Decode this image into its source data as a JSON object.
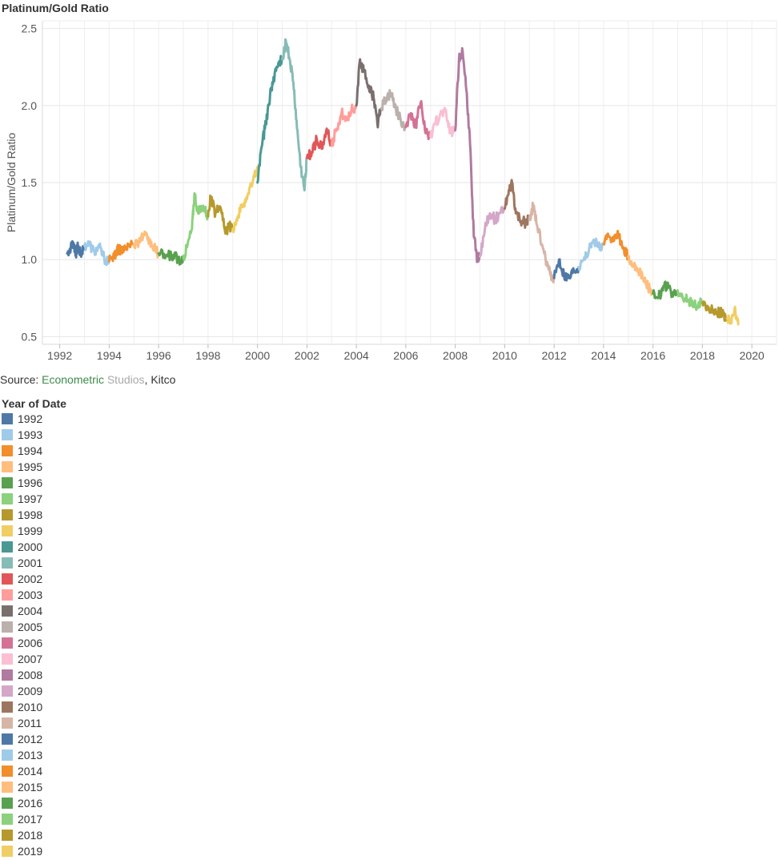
{
  "title": "Platinum/Gold Ratio",
  "source": {
    "prefix": "Source: ",
    "part1": "Econometric",
    "part2": " Studios",
    "part3": ", Kitco"
  },
  "legend": {
    "title": "Year of Date"
  },
  "colors": {
    "1992": "#4e79a7",
    "1993": "#a0cbe8",
    "1994": "#f28e2b",
    "1995": "#ffbe7d",
    "1996": "#59a14f",
    "1997": "#8cd17d",
    "1998": "#b6992d",
    "1999": "#f1ce63",
    "2000": "#499894",
    "2001": "#86bcb6",
    "2002": "#e15759",
    "2003": "#ff9d9a",
    "2004": "#79706e",
    "2005": "#bab0ac",
    "2006": "#d37295",
    "2007": "#fabfd2",
    "2008": "#b07aa1",
    "2009": "#d4a6c8",
    "2010": "#9d7660",
    "2011": "#d7b5a6",
    "2012": "#4e79a7",
    "2013": "#a0cbe8",
    "2014": "#f28e2b",
    "2015": "#ffbe7d",
    "2016": "#59a14f",
    "2017": "#8cd17d",
    "2018": "#b6992d",
    "2019": "#f1ce63"
  },
  "chart_data": {
    "type": "line",
    "ylabel": "Platinum/Gold Ratio",
    "xlabel": "",
    "xlim": [
      1991.3,
      2021.0
    ],
    "ylim": [
      0.45,
      2.55
    ],
    "xticks": [
      "1992",
      "1994",
      "1996",
      "1998",
      "2000",
      "2002",
      "2004",
      "2006",
      "2008",
      "2010",
      "2012",
      "2014",
      "2016",
      "2018",
      "2020"
    ],
    "yticks": [
      "0.5",
      "1.0",
      "1.5",
      "2.0",
      "2.5"
    ],
    "grid": true,
    "legend": "below chart, left",
    "series": [
      {
        "name": "1992",
        "x": [
          1992.3,
          1992.45,
          1992.55,
          1992.65,
          1992.75,
          1992.85,
          1992.99
        ],
        "y": [
          1.04,
          1.08,
          1.11,
          1.04,
          1.09,
          1.03,
          1.09
        ]
      },
      {
        "name": "1993",
        "x": [
          1993.0,
          1993.2,
          1993.4,
          1993.6,
          1993.8,
          1993.99
        ],
        "y": [
          1.09,
          1.1,
          1.05,
          1.08,
          1.01,
          0.98
        ]
      },
      {
        "name": "1994",
        "x": [
          1994.0,
          1994.2,
          1994.4,
          1994.6,
          1994.8,
          1994.99
        ],
        "y": [
          0.99,
          1.03,
          1.07,
          1.06,
          1.09,
          1.1
        ]
      },
      {
        "name": "1995",
        "x": [
          1995.0,
          1995.2,
          1995.4,
          1995.55,
          1995.75,
          1995.99
        ],
        "y": [
          1.1,
          1.12,
          1.16,
          1.13,
          1.09,
          1.04
        ]
      },
      {
        "name": "1996",
        "x": [
          1996.0,
          1996.3,
          1996.6,
          1996.8,
          1996.99
        ],
        "y": [
          1.04,
          1.02,
          1.03,
          1.0,
          1.01
        ]
      },
      {
        "name": "1997",
        "x": [
          1997.0,
          1997.15,
          1997.35,
          1997.45,
          1997.6,
          1997.8,
          1997.99
        ],
        "y": [
          1.01,
          1.08,
          1.2,
          1.43,
          1.3,
          1.35,
          1.28
        ]
      },
      {
        "name": "1998",
        "x": [
          1998.0,
          1998.1,
          1998.3,
          1998.5,
          1998.7,
          1998.85,
          1998.99
        ],
        "y": [
          1.28,
          1.4,
          1.3,
          1.34,
          1.17,
          1.22,
          1.2
        ]
      },
      {
        "name": "1999",
        "x": [
          1999.0,
          1999.2,
          1999.4,
          1999.6,
          1999.8,
          1999.99
        ],
        "y": [
          1.2,
          1.28,
          1.35,
          1.42,
          1.5,
          1.6
        ]
      },
      {
        "name": "2000",
        "x": [
          2000.0,
          2000.15,
          2000.3,
          2000.45,
          2000.6,
          2000.8,
          2000.99
        ],
        "y": [
          1.5,
          1.72,
          1.85,
          2.0,
          2.15,
          2.25,
          2.3
        ]
      },
      {
        "name": "2001",
        "x": [
          2001.0,
          2001.15,
          2001.3,
          2001.45,
          2001.6,
          2001.75,
          2001.9,
          2001.99
        ],
        "y": [
          2.3,
          2.42,
          2.3,
          2.15,
          1.85,
          1.6,
          1.45,
          1.66
        ]
      },
      {
        "name": "2002",
        "x": [
          2002.0,
          2002.2,
          2002.4,
          2002.6,
          2002.8,
          2002.99
        ],
        "y": [
          1.66,
          1.7,
          1.78,
          1.72,
          1.85,
          1.74
        ]
      },
      {
        "name": "2003",
        "x": [
          2003.0,
          2003.2,
          2003.4,
          2003.6,
          2003.8,
          2003.99
        ],
        "y": [
          1.74,
          1.85,
          1.95,
          1.92,
          1.97,
          2.0
        ]
      },
      {
        "name": "2004",
        "x": [
          2004.0,
          2004.15,
          2004.3,
          2004.5,
          2004.7,
          2004.85,
          2004.99
        ],
        "y": [
          2.0,
          2.3,
          2.22,
          2.13,
          2.05,
          1.88,
          1.98
        ]
      },
      {
        "name": "2005",
        "x": [
          2005.0,
          2005.2,
          2005.4,
          2005.6,
          2005.8,
          2005.99
        ],
        "y": [
          1.98,
          2.05,
          2.08,
          1.98,
          1.9,
          1.86
        ]
      },
      {
        "name": "2006",
        "x": [
          2006.0,
          2006.2,
          2006.4,
          2006.6,
          2006.8,
          2006.99
        ],
        "y": [
          1.86,
          1.95,
          1.87,
          2.02,
          1.82,
          1.8
        ]
      },
      {
        "name": "2007",
        "x": [
          2007.0,
          2007.2,
          2007.4,
          2007.6,
          2007.8,
          2007.99
        ],
        "y": [
          1.8,
          1.88,
          1.95,
          1.96,
          1.83,
          1.84
        ]
      },
      {
        "name": "2008",
        "x": [
          2008.0,
          2008.15,
          2008.3,
          2008.45,
          2008.6,
          2008.75,
          2008.9,
          2008.99
        ],
        "y": [
          1.84,
          2.3,
          2.35,
          2.1,
          1.75,
          1.15,
          1.0,
          1.02
        ]
      },
      {
        "name": "2009",
        "x": [
          2009.0,
          2009.2,
          2009.4,
          2009.6,
          2009.8,
          2009.99
        ],
        "y": [
          1.02,
          1.2,
          1.3,
          1.26,
          1.3,
          1.33
        ]
      },
      {
        "name": "2010",
        "x": [
          2010.0,
          2010.15,
          2010.3,
          2010.45,
          2010.65,
          2010.85,
          2010.99
        ],
        "y": [
          1.33,
          1.42,
          1.5,
          1.3,
          1.25,
          1.24,
          1.26
        ]
      },
      {
        "name": "2011",
        "x": [
          2011.0,
          2011.15,
          2011.3,
          2011.5,
          2011.7,
          2011.85,
          2011.99
        ],
        "y": [
          1.26,
          1.35,
          1.23,
          1.1,
          0.98,
          0.9,
          0.88
        ]
      },
      {
        "name": "2012",
        "x": [
          2012.0,
          2012.2,
          2012.4,
          2012.6,
          2012.8,
          2012.99
        ],
        "y": [
          0.88,
          1.0,
          0.9,
          0.88,
          0.93,
          0.95
        ]
      },
      {
        "name": "2013",
        "x": [
          2013.0,
          2013.2,
          2013.4,
          2013.6,
          2013.8,
          2013.99
        ],
        "y": [
          0.95,
          1.0,
          1.05,
          1.13,
          1.08,
          1.1
        ]
      },
      {
        "name": "2014",
        "x": [
          2014.0,
          2014.2,
          2014.4,
          2014.6,
          2014.8,
          2014.99
        ],
        "y": [
          1.1,
          1.15,
          1.12,
          1.16,
          1.08,
          1.02
        ]
      },
      {
        "name": "2015",
        "x": [
          2015.0,
          2015.2,
          2015.4,
          2015.6,
          2015.8,
          2015.99
        ],
        "y": [
          1.02,
          0.97,
          0.93,
          0.88,
          0.82,
          0.78
        ]
      },
      {
        "name": "2016",
        "x": [
          2016.0,
          2016.2,
          2016.4,
          2016.6,
          2016.8,
          2016.99
        ],
        "y": [
          0.78,
          0.75,
          0.8,
          0.85,
          0.76,
          0.8
        ]
      },
      {
        "name": "2017",
        "x": [
          2017.0,
          2017.2,
          2017.4,
          2017.6,
          2017.8,
          2017.99
        ],
        "y": [
          0.8,
          0.75,
          0.74,
          0.72,
          0.7,
          0.72
        ]
      },
      {
        "name": "2018",
        "x": [
          2018.0,
          2018.2,
          2018.4,
          2018.6,
          2018.8,
          2018.99
        ],
        "y": [
          0.72,
          0.7,
          0.68,
          0.66,
          0.65,
          0.62
        ]
      },
      {
        "name": "2019",
        "x": [
          2019.0,
          2019.15,
          2019.3,
          2019.45
        ],
        "y": [
          0.62,
          0.59,
          0.68,
          0.58
        ]
      }
    ]
  }
}
